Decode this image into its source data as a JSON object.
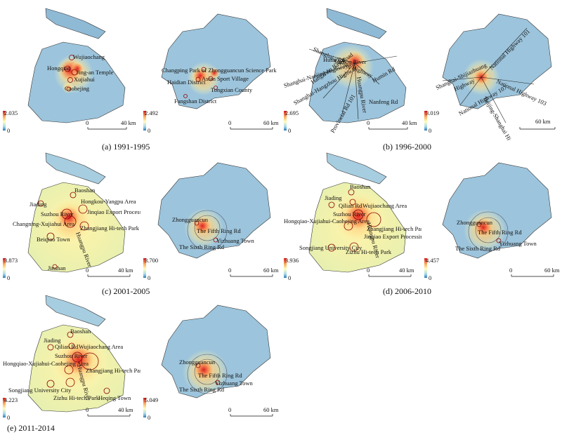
{
  "colors": {
    "high": "#d7191c",
    "mid_high": "#fdae61",
    "mid": "#ffffbf",
    "mid_low": "#abd9e9",
    "low": "#2c7bb6",
    "water": "#7fb3d5"
  },
  "panels": [
    {
      "caption": "(a) 1991-1995",
      "shanghai": {
        "legend_max": "2.035",
        "legend_min": "0",
        "scale": {
          "zero": "0",
          "dist": "40 km"
        },
        "labels": [
          "Wujiaochang",
          "Hongqiao",
          "Jing-an Temple",
          "Xujiahui",
          "Caohejing"
        ]
      },
      "beijing": {
        "legend_max": "2.492",
        "legend_min": "0",
        "scale": {
          "zero": "0",
          "dist": "60 km"
        },
        "labels": [
          "Changping Park of Zhongguancun Science Park",
          "Asian Sport Village",
          "Haidian District",
          "Tongxian County",
          "Fangshan District"
        ]
      }
    },
    {
      "caption": "(b) 1996-2000",
      "shanghai": {
        "legend_max": "2.695",
        "legend_min": "0",
        "scale": {
          "zero": "0",
          "dist": "40 km"
        },
        "labels": [
          "Shanghai-Jiading Highway",
          "Suzhou River",
          "Hutai Rd",
          "Shanghai-Nanjing Highway",
          "Hangzhou Bay Road",
          "Shanghai-Hangzhou Highway",
          "Huangpu River",
          "Humin Rd",
          "Nanfeng Rd",
          "Provincial Rd 101"
        ]
      },
      "beijing": {
        "legend_max": "3.019",
        "legend_min": "0",
        "scale": {
          "zero": "0",
          "dist": "60 km"
        },
        "labels": [
          "National Highway 101",
          "Shanghai-Shijiazhuang",
          "Highway",
          "National Highway 103",
          "National Highway 107",
          "Beijing-Shanghai Highway"
        ]
      }
    },
    {
      "caption": "(c) 2001-2005",
      "shanghai": {
        "legend_max": "3.873",
        "legend_min": "0",
        "scale": {
          "zero": "0",
          "dist": "40 km"
        },
        "labels": [
          "Baoshan",
          "Jiading",
          "Hongkou-Yangpu Area",
          "Suzhou River",
          "Jinqiao Export Processing Zone",
          "Changning-Xujiahui Area",
          "Zhangjiang Hi-tech Park",
          "Beiqiao Town",
          "Huangpu River",
          "Jinshan"
        ]
      },
      "beijing": {
        "legend_max": "3.700",
        "legend_min": "0",
        "scale": {
          "zero": "0",
          "dist": "60 km"
        },
        "labels": [
          "Zhongguancun",
          "The Fifth Ring Rd",
          "Yizhuang Town",
          "The Sixth Ring Rd"
        ]
      }
    },
    {
      "caption": "(d) 2006-2010",
      "shanghai": {
        "legend_max": "3.936",
        "legend_min": "0",
        "scale": {
          "zero": "0",
          "dist": "40 km"
        },
        "labels": [
          "Baoshan",
          "Jiading",
          "Qilian Rd",
          "Wujiaochang Area",
          "Suzhou River",
          "Hongqiao-Xujiahui-Caohejing Area",
          "Zhangjiang Hi-tech Park and",
          "Jinqiao Export Processing Zone",
          "Songjiang University City",
          "Zizhu Hi-tech Park",
          "Huangpu River"
        ]
      },
      "beijing": {
        "legend_max": "4.457",
        "legend_min": "0",
        "scale": {
          "zero": "0",
          "dist": "60 km"
        },
        "labels": [
          "Zhongguancun",
          "The Fifth Ring Rd",
          "The Sixth Ring Rd",
          "Yizhuang Town"
        ]
      }
    },
    {
      "caption": "(e) 2011-2014",
      "shanghai": {
        "legend_max": "4.223",
        "legend_min": "0",
        "scale": {
          "zero": "0",
          "dist": "40 km"
        },
        "labels": [
          "Baoshan",
          "Jiading",
          "Qilian Rd",
          "Wujiaochang Area",
          "Suzhou River",
          "Hongqiao-Xujiahui-Caohejing Area",
          "Zhangjiang Hi-tech Park",
          "Songjiang University City",
          "Zizhu Hi-tech Park",
          "Huangpu River",
          "Heqing Town"
        ]
      },
      "beijing": {
        "legend_max": "5.049",
        "legend_min": "0",
        "scale": {
          "zero": "0",
          "dist": "60 km"
        },
        "labels": [
          "Zhongguancun",
          "The Fifth Ring Rd",
          "Yizhuang Town",
          "The Sixth Ring Rd"
        ]
      }
    }
  ]
}
